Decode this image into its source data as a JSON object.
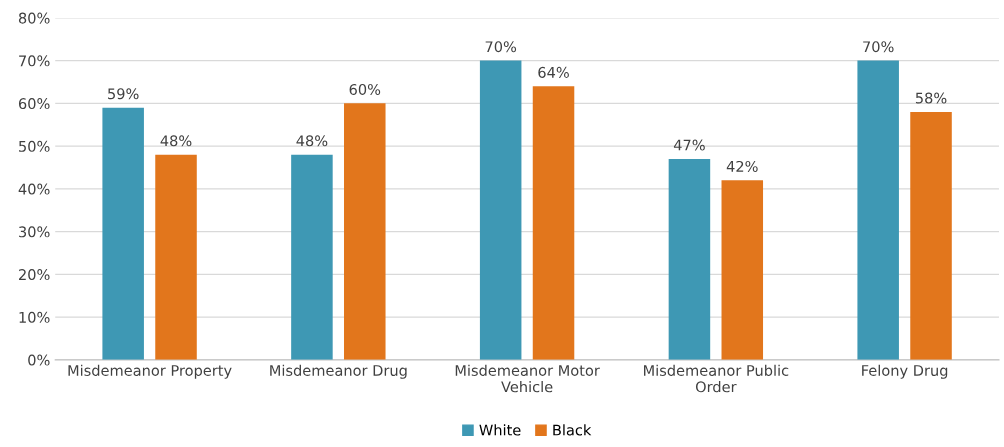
{
  "chart_data": {
    "type": "bar",
    "categories": [
      "Misdemeanor Property",
      "Misdemeanor Drug",
      "Misdemeanor Motor Vehicle",
      "Misdemeanor Public Order",
      "Felony Drug"
    ],
    "series": [
      {
        "name": "White",
        "color": "#3e98b4",
        "values": [
          59,
          48,
          70,
          47,
          70
        ],
        "value_labels": [
          "59%",
          "48%",
          "70%",
          "47%",
          "70%"
        ]
      },
      {
        "name": "Black",
        "color": "#e2761c",
        "values": [
          48,
          60,
          64,
          42,
          58
        ],
        "value_labels": [
          "48%",
          "60%",
          "64%",
          "42%",
          "58%"
        ]
      }
    ],
    "ylim": [
      0,
      80
    ],
    "yticks": [
      {
        "value": 0,
        "label": "0%"
      },
      {
        "value": 10,
        "label": "10%"
      },
      {
        "value": 20,
        "label": "20%"
      },
      {
        "value": 30,
        "label": "30%"
      },
      {
        "value": 40,
        "label": "40%"
      },
      {
        "value": 50,
        "label": "50%"
      },
      {
        "value": 60,
        "label": "60%"
      },
      {
        "value": 70,
        "label": "70%"
      },
      {
        "value": 80,
        "label": "80%"
      }
    ],
    "grid": "y",
    "legend": "bottom"
  }
}
